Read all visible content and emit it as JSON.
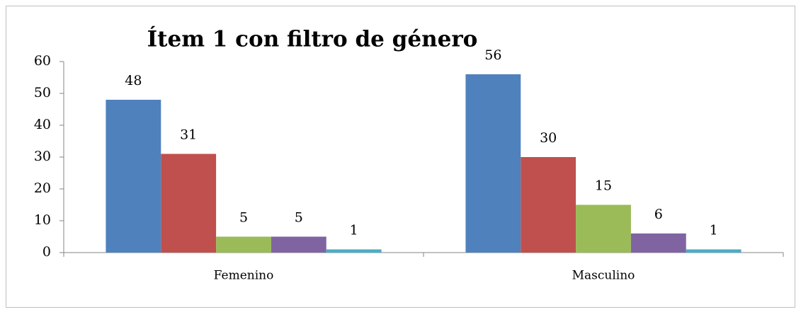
{
  "chart_data": {
    "type": "bar",
    "title": "Ítem 1 con filtro de género",
    "categories": [
      "Femenino",
      "Masculino"
    ],
    "series": [
      {
        "color": "#4f81bd",
        "values": [
          48,
          56
        ]
      },
      {
        "color": "#c0504d",
        "values": [
          31,
          30
        ]
      },
      {
        "color": "#9bbb59",
        "values": [
          5,
          15
        ]
      },
      {
        "color": "#8064a2",
        "values": [
          5,
          6
        ]
      },
      {
        "color": "#4bacc6",
        "values": [
          1,
          1
        ]
      }
    ],
    "ylim": [
      0,
      60
    ],
    "yticks": [
      0,
      10,
      20,
      30,
      40,
      50,
      60
    ],
    "grid": false
  }
}
